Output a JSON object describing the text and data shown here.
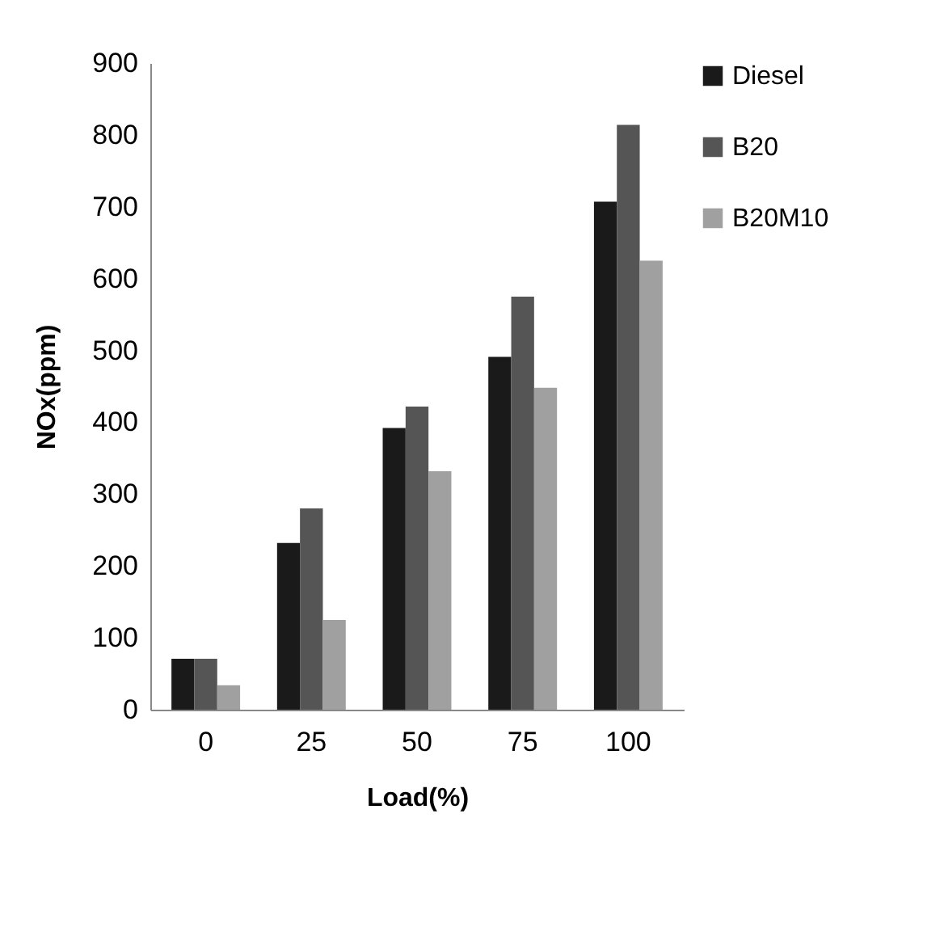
{
  "chart_data": {
    "type": "bar",
    "xlabel": "Load(%)",
    "ylabel": "NOx(ppm)",
    "categories": [
      "0",
      "25",
      "50",
      "75",
      "100"
    ],
    "series": [
      {
        "name": "Diesel",
        "color": "#1a1a1a",
        "values": [
          71,
          232,
          392,
          491,
          707
        ]
      },
      {
        "name": "B20",
        "color": "#555555",
        "values": [
          71,
          280,
          422,
          575,
          814
        ]
      },
      {
        "name": "B20M10",
        "color": "#a0a0a0",
        "values": [
          34,
          125,
          332,
          448,
          625
        ]
      }
    ],
    "ylim": [
      0,
      900
    ],
    "yticks": [
      0,
      100,
      200,
      300,
      400,
      500,
      600,
      700,
      800,
      900
    ],
    "grid": false,
    "legend": "right"
  }
}
